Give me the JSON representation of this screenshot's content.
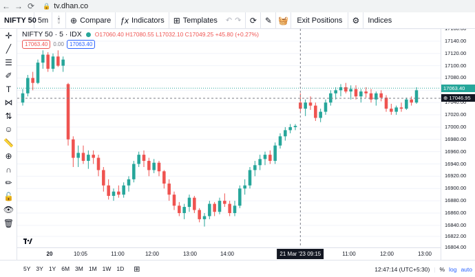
{
  "browser": {
    "url": "tv.dhan.co"
  },
  "toolbar": {
    "symbol": "NIFTY 50",
    "interval": "5m",
    "compare_label": "Compare",
    "indicators_label": "Indicators",
    "templates_label": "Templates",
    "exit_positions_label": "Exit Positions",
    "indices_label": "Indices"
  },
  "legend": {
    "title": "NIFTY 50 · 5 · IDX",
    "ohlc": "O17060.40 H17080.55 L17032.10 C17049.25 +45.80 (+0.27%)",
    "sell_price": "17063.40",
    "spread": "0.00",
    "buy_price": "17063.40"
  },
  "price_axis": {
    "ticks": [
      "17160.00",
      "17140.00",
      "17120.00",
      "17100.00",
      "17080.00",
      "17060.00",
      "17040.00",
      "17020.00",
      "17000.00",
      "16980.00",
      "16960.00",
      "16940.00",
      "16920.00",
      "16900.00",
      "16880.00",
      "16860.00",
      "16840.00",
      "16822.00",
      "16804.00"
    ],
    "last_price_tag": "17063.40",
    "crosshair_price_tag": "17046.95"
  },
  "time_axis": {
    "labels": [
      "20",
      "10:05",
      "11:00",
      "12:00",
      "13:00",
      "14:00",
      "10:05",
      "11:00",
      "12:00",
      "13:00"
    ],
    "crosshair_time": "21 Mar '23   09:15"
  },
  "bottom_bar": {
    "ranges": [
      "5Y",
      "3Y",
      "1Y",
      "6M",
      "3M",
      "1M",
      "1W",
      "1D"
    ],
    "clock": "12:47:14 (UTC+5:30)",
    "percent": "%",
    "log": "log",
    "auto": "auto"
  },
  "colors": {
    "up": "#26a69a",
    "down": "#ef5350",
    "accent": "#2962ff"
  },
  "chart_data": {
    "type": "candlestick",
    "title": "NIFTY 50 · 5 · IDX",
    "ylim": [
      16804,
      17160
    ],
    "candles": [
      [
        17040,
        17062,
        17035,
        17055
      ],
      [
        17055,
        17085,
        17050,
        17080
      ],
      [
        17080,
        17090,
        17060,
        17072
      ],
      [
        17072,
        17110,
        17070,
        17105
      ],
      [
        17105,
        17125,
        17095,
        17118
      ],
      [
        17118,
        17122,
        17090,
        17095
      ],
      [
        17095,
        17120,
        17090,
        17115
      ],
      [
        17115,
        17125,
        17098,
        17100
      ],
      [
        17100,
        17115,
        17090,
        17110
      ],
      [
        17070,
        17072,
        16970,
        16980
      ],
      [
        16980,
        16985,
        16935,
        16950
      ],
      [
        16950,
        16970,
        16935,
        16958
      ],
      [
        16958,
        16970,
        16940,
        16945
      ],
      [
        16945,
        16962,
        16932,
        16955
      ],
      [
        16955,
        16962,
        16940,
        16950
      ],
      [
        16950,
        16955,
        16920,
        16930
      ],
      [
        16930,
        16935,
        16895,
        16905
      ],
      [
        16905,
        16915,
        16882,
        16888
      ],
      [
        16888,
        16900,
        16880,
        16895
      ],
      [
        16895,
        16905,
        16885,
        16890
      ],
      [
        16890,
        16910,
        16885,
        16905
      ],
      [
        16905,
        16920,
        16895,
        16915
      ],
      [
        16915,
        16945,
        16910,
        16940
      ],
      [
        16940,
        16960,
        16935,
        16955
      ],
      [
        16955,
        16962,
        16935,
        16945
      ],
      [
        16945,
        16950,
        16920,
        16930
      ],
      [
        16930,
        16948,
        16925,
        16942
      ],
      [
        16942,
        16945,
        16920,
        16928
      ],
      [
        16928,
        16930,
        16900,
        16908
      ],
      [
        16908,
        16915,
        16880,
        16890
      ],
      [
        16890,
        16895,
        16865,
        16872
      ],
      [
        16872,
        16878,
        16855,
        16860
      ],
      [
        16860,
        16875,
        16850,
        16870
      ],
      [
        16870,
        16890,
        16862,
        16885
      ],
      [
        16885,
        16888,
        16860,
        16865
      ],
      [
        16865,
        16868,
        16845,
        16850
      ],
      [
        16850,
        16860,
        16838,
        16855
      ],
      [
        16855,
        16880,
        16850,
        16875
      ],
      [
        16875,
        16878,
        16855,
        16862
      ],
      [
        16862,
        16885,
        16858,
        16880
      ],
      [
        16880,
        16892,
        16870,
        16875
      ],
      [
        16875,
        16880,
        16855,
        16860
      ],
      [
        16860,
        16880,
        16855,
        16872
      ],
      [
        16872,
        16905,
        16868,
        16900
      ],
      [
        16900,
        16915,
        16890,
        16905
      ],
      [
        16905,
        16935,
        16900,
        16930
      ],
      [
        16930,
        16945,
        16920,
        16938
      ],
      [
        16938,
        16955,
        16930,
        16948
      ],
      [
        16948,
        16960,
        16938,
        16955
      ],
      [
        16955,
        16962,
        16940,
        16945
      ],
      [
        16945,
        16975,
        16940,
        16970
      ],
      [
        16970,
        16990,
        16965,
        16985
      ],
      [
        16985,
        17000,
        16978,
        16995
      ],
      [
        16995,
        17005,
        16990,
        17000
      ],
      [
        17000,
        17005,
        16995,
        17002
      ],
      [
        17040,
        17055,
        17025,
        17030
      ],
      [
        17030,
        17045,
        17018,
        17040
      ],
      [
        17040,
        17050,
        17028,
        17035
      ],
      [
        17035,
        17040,
        17010,
        17015
      ],
      [
        17015,
        17030,
        17008,
        17025
      ],
      [
        17025,
        17045,
        17020,
        17040
      ],
      [
        17040,
        17060,
        17035,
        17055
      ],
      [
        17055,
        17065,
        17045,
        17060
      ],
      [
        17060,
        17070,
        17050,
        17065
      ],
      [
        17065,
        17072,
        17055,
        17058
      ],
      [
        17058,
        17068,
        17045,
        17062
      ],
      [
        17062,
        17068,
        17045,
        17050
      ],
      [
        17050,
        17062,
        17040,
        17058
      ],
      [
        17058,
        17065,
        17048,
        17055
      ],
      [
        17055,
        17062,
        17040,
        17045
      ],
      [
        17045,
        17058,
        17035,
        17055
      ],
      [
        17055,
        17060,
        17042,
        17048
      ],
      [
        17048,
        17052,
        17025,
        17030
      ],
      [
        17030,
        17038,
        17020,
        17025
      ],
      [
        17025,
        17035,
        17020,
        17032
      ],
      [
        17032,
        17040,
        17025,
        17030
      ],
      [
        17030,
        17048,
        17028,
        17045
      ],
      [
        17045,
        17050,
        17035,
        17040
      ],
      [
        17040,
        17065,
        17038,
        17060
      ]
    ]
  }
}
